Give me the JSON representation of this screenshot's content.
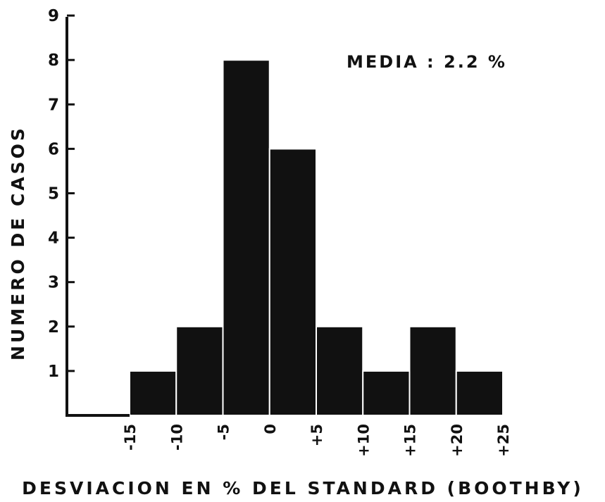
{
  "chart_data": {
    "type": "bar",
    "annotation": "MEDIA : 2.2 %",
    "xlabel": "DESVIACION EN % DEL STANDARD (BOOTHBY)",
    "ylabel": "NUMERO DE CASOS",
    "ylim": [
      0,
      9
    ],
    "yticks": [
      "1",
      "2",
      "3",
      "4",
      "5",
      "6",
      "7",
      "8",
      "9"
    ],
    "xticks": [
      {
        "label": "-15",
        "value": -15
      },
      {
        "label": "-10",
        "value": -10
      },
      {
        "label": "-5",
        "value": -5
      },
      {
        "label": "0",
        "value": 0
      },
      {
        "label": "+5",
        "value": 5
      },
      {
        "label": "+10",
        "value": 10
      },
      {
        "label": "+15",
        "value": 15
      },
      {
        "label": "+20",
        "value": 20
      },
      {
        "label": "+25",
        "value": 25
      }
    ],
    "bins": [
      {
        "from": -15,
        "to": -10,
        "count": 1
      },
      {
        "from": -10,
        "to": -5,
        "count": 2
      },
      {
        "from": -5,
        "to": 0,
        "count": 8
      },
      {
        "from": 0,
        "to": 5,
        "count": 6
      },
      {
        "from": 5,
        "to": 10,
        "count": 2
      },
      {
        "from": 10,
        "to": 15,
        "count": 1
      },
      {
        "from": 15,
        "to": 20,
        "count": 2
      },
      {
        "from": 20,
        "to": 25,
        "count": 1
      }
    ],
    "grid": false,
    "legend": "none",
    "bar_color": "#111111"
  }
}
